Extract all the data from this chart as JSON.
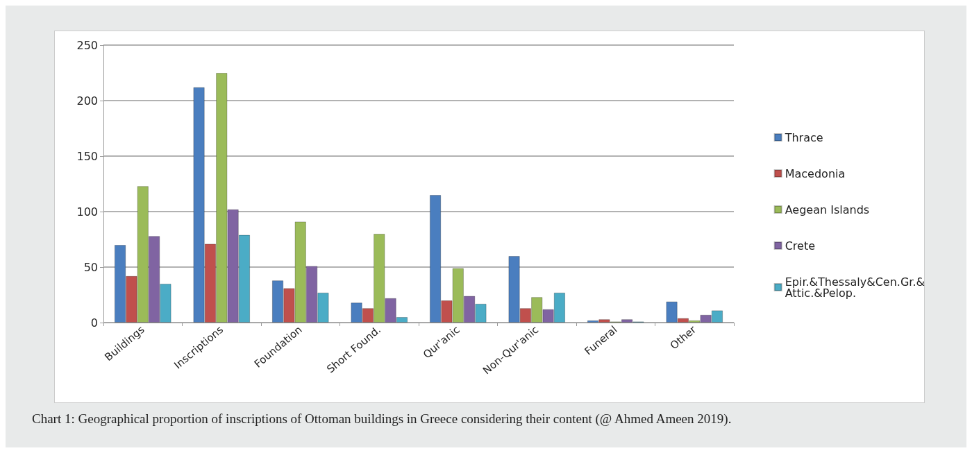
{
  "chart_data": {
    "type": "bar",
    "categories": [
      "Buildings",
      "Inscriptions",
      "Foundation",
      "Short Found.",
      "Qur'anic",
      "Non-Qur'anic",
      "Funeral",
      "Other"
    ],
    "series": [
      {
        "name": "Thrace",
        "color": "#4a7ebf",
        "values": [
          70,
          212,
          38,
          18,
          115,
          60,
          2,
          19
        ]
      },
      {
        "name": "Macedonia",
        "color": "#c0504d",
        "values": [
          42,
          71,
          31,
          13,
          20,
          13,
          3,
          4
        ]
      },
      {
        "name": "Aegean Islands",
        "color": "#9bbb59",
        "values": [
          123,
          225,
          91,
          80,
          49,
          23,
          1,
          2
        ]
      },
      {
        "name": "Crete",
        "color": "#8064a2",
        "values": [
          78,
          102,
          51,
          22,
          24,
          12,
          3,
          7
        ]
      },
      {
        "name": "Epir.&Thessaly&Cen.Gr.&Attic.&Pelop.",
        "color": "#4bacc6",
        "values": [
          35,
          79,
          27,
          5,
          17,
          27,
          1,
          11
        ]
      }
    ],
    "ylim": [
      0,
      250
    ],
    "yticks": [
      0,
      50,
      100,
      150,
      200,
      250
    ],
    "grid": "y",
    "legend": "right",
    "annotations": [
      "Chart 1: Geographical proportion of inscriptions of Ottoman buildings in Greece considering their content (@ Ahmed Ameen 2019)."
    ]
  }
}
